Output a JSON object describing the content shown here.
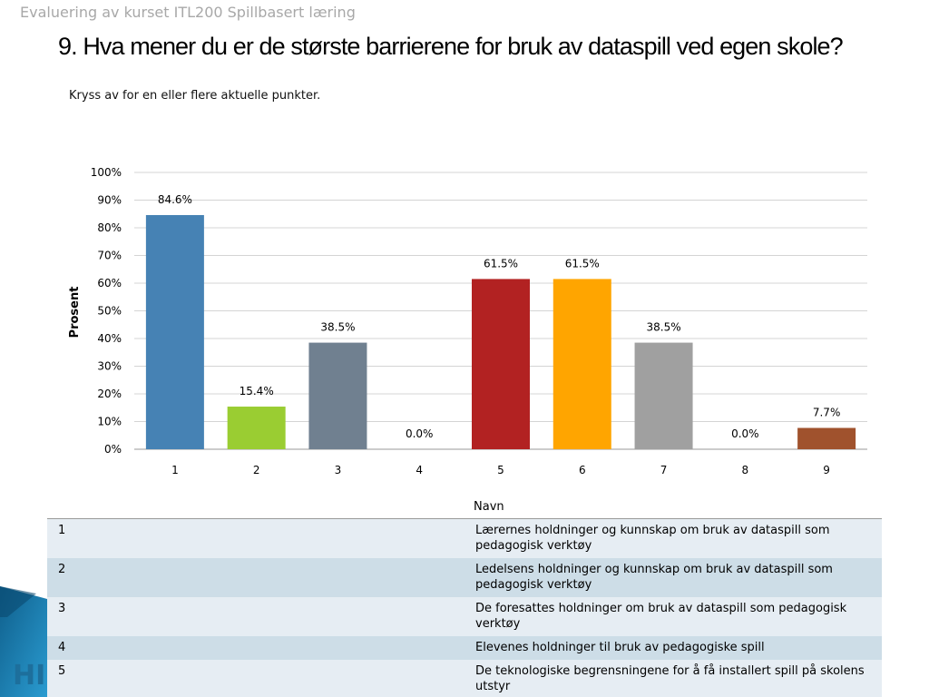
{
  "header": {
    "caption": "Evaluering av kurset ITL200 Spillbasert læring",
    "title": "9. Hva mener du er de største barrierene for bruk av dataspill ved egen skole?",
    "instruction": "Kryss av for en eller flere aktuelle punkter."
  },
  "chart_data": {
    "type": "bar",
    "categories": [
      "1",
      "2",
      "3",
      "4",
      "5",
      "6",
      "7",
      "8",
      "9"
    ],
    "values": [
      84.6,
      15.4,
      38.5,
      0.0,
      61.5,
      61.5,
      38.5,
      0.0,
      7.7
    ],
    "value_labels": [
      "84.6%",
      "15.4%",
      "38.5%",
      "0.0%",
      "61.5%",
      "61.5%",
      "38.5%",
      "0.0%",
      "7.7%"
    ],
    "colors": [
      "#4682b4",
      "#9acd32",
      "#708090",
      "#d2d2d2",
      "#b22222",
      "#ffa500",
      "#a0a0a0",
      "#d2d2d2",
      "#a0522d"
    ],
    "ylabel": "Prosent",
    "ylim": [
      0,
      100
    ],
    "yticks": [
      0,
      10,
      20,
      30,
      40,
      50,
      60,
      70,
      80,
      90,
      100
    ],
    "ytick_labels": [
      "0%",
      "10%",
      "20%",
      "30%",
      "40%",
      "50%",
      "60%",
      "70%",
      "80%",
      "90%",
      "100%"
    ],
    "grid": true,
    "legend": "none"
  },
  "table": {
    "header_name": "Navn",
    "rows": [
      {
        "num": "1",
        "name": "Lærernes holdninger og kunnskap om bruk av dataspill som pedagogisk verktøy"
      },
      {
        "num": "2",
        "name": "Ledelsens holdninger og kunnskap om bruk av dataspill som pedagogisk verktøy"
      },
      {
        "num": "3",
        "name": "De foresattes holdninger om bruk av dataspill som pedagogisk verktøy"
      },
      {
        "num": "4",
        "name": "Elevenes holdninger til bruk av pedagogiske spill"
      },
      {
        "num": "5",
        "name": "De teknologiske begrensningene for å få installert spill på skolens utstyr"
      }
    ]
  },
  "logo": {
    "text": "HI"
  }
}
